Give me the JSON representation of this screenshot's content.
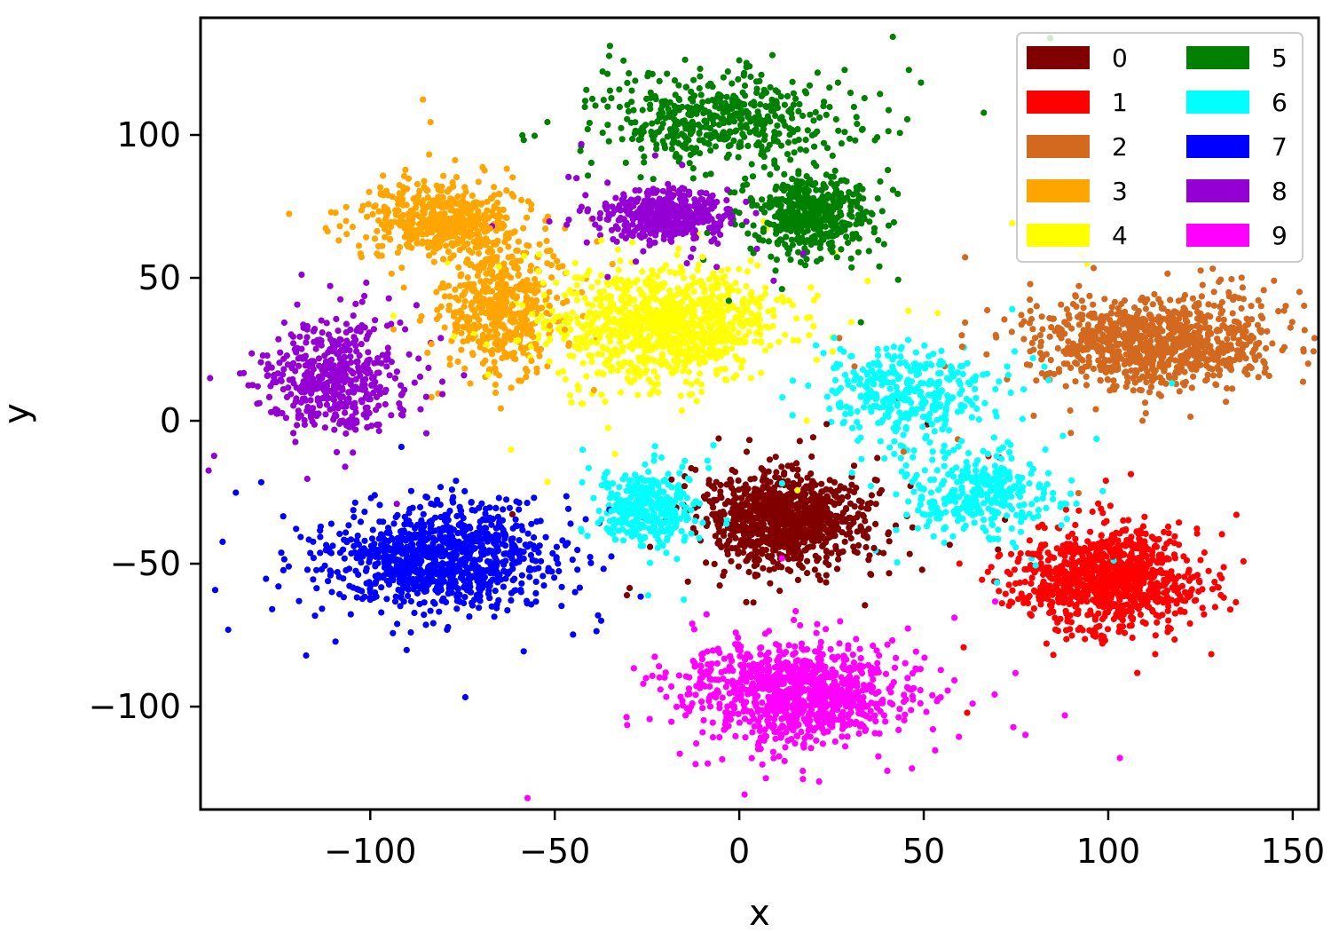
{
  "chart_data": {
    "type": "scatter",
    "title": "",
    "xlabel": "x",
    "ylabel": "y",
    "xlim": [
      -146,
      157
    ],
    "ylim": [
      -136,
      141
    ],
    "xticks": [
      -100,
      -50,
      0,
      50,
      100,
      150
    ],
    "yticks": [
      -100,
      -50,
      0,
      50,
      100
    ],
    "xtick_labels": [
      "−100",
      "−50",
      "0",
      "50",
      "100",
      "150"
    ],
    "ytick_labels": [
      "−100",
      "−50",
      "0",
      "50",
      "100"
    ],
    "grid": false,
    "legend": {
      "placement": "top-right",
      "columns": 2
    },
    "series": [
      {
        "name": "0",
        "color": "#800000",
        "points_approx": 1000,
        "clusters": [
          {
            "center": [
              12,
              -35
            ],
            "spread": [
              20,
              15
            ]
          }
        ]
      },
      {
        "name": "1",
        "color": "#ff0000",
        "points_approx": 1000,
        "clusters": [
          {
            "center": [
              100,
              -55
            ],
            "spread": [
              22,
              16
            ]
          }
        ]
      },
      {
        "name": "2",
        "color": "#d2691e",
        "points_approx": 1000,
        "clusters": [
          {
            "center": [
              112,
              27
            ],
            "spread": [
              30,
              14
            ]
          }
        ]
      },
      {
        "name": "3",
        "color": "#ffa500",
        "points_approx": 1000,
        "clusters": [
          {
            "center": [
              -80,
              70
            ],
            "spread": [
              20,
              12
            ]
          },
          {
            "center": [
              -65,
              40
            ],
            "spread": [
              14,
              20
            ]
          }
        ]
      },
      {
        "name": "4",
        "color": "#ffff00",
        "points_approx": 1000,
        "clusters": [
          {
            "center": [
              -20,
              33
            ],
            "spread": [
              28,
              18
            ]
          }
        ]
      },
      {
        "name": "5",
        "color": "#008000",
        "points_approx": 1000,
        "clusters": [
          {
            "center": [
              -5,
              105
            ],
            "spread": [
              30,
              14
            ]
          },
          {
            "center": [
              20,
              72
            ],
            "spread": [
              14,
              12
            ]
          }
        ]
      },
      {
        "name": "6",
        "color": "#00ffff",
        "points_approx": 1000,
        "clusters": [
          {
            "center": [
              45,
              10
            ],
            "spread": [
              22,
              16
            ]
          },
          {
            "center": [
              65,
              -25
            ],
            "spread": [
              18,
              14
            ]
          },
          {
            "center": [
              -25,
              -30
            ],
            "spread": [
              12,
              12
            ]
          }
        ]
      },
      {
        "name": "7",
        "color": "#0000ff",
        "points_approx": 1000,
        "clusters": [
          {
            "center": [
              -80,
              -48
            ],
            "spread": [
              26,
              16
            ]
          }
        ]
      },
      {
        "name": "8",
        "color": "#9400d3",
        "points_approx": 1000,
        "clusters": [
          {
            "center": [
              -110,
              15
            ],
            "spread": [
              18,
              18
            ]
          },
          {
            "center": [
              -20,
              72
            ],
            "spread": [
              16,
              8
            ]
          }
        ]
      },
      {
        "name": "9",
        "color": "#ff00ff",
        "points_approx": 1000,
        "clusters": [
          {
            "center": [
              15,
              -95
            ],
            "spread": [
              28,
              16
            ]
          }
        ]
      }
    ]
  }
}
